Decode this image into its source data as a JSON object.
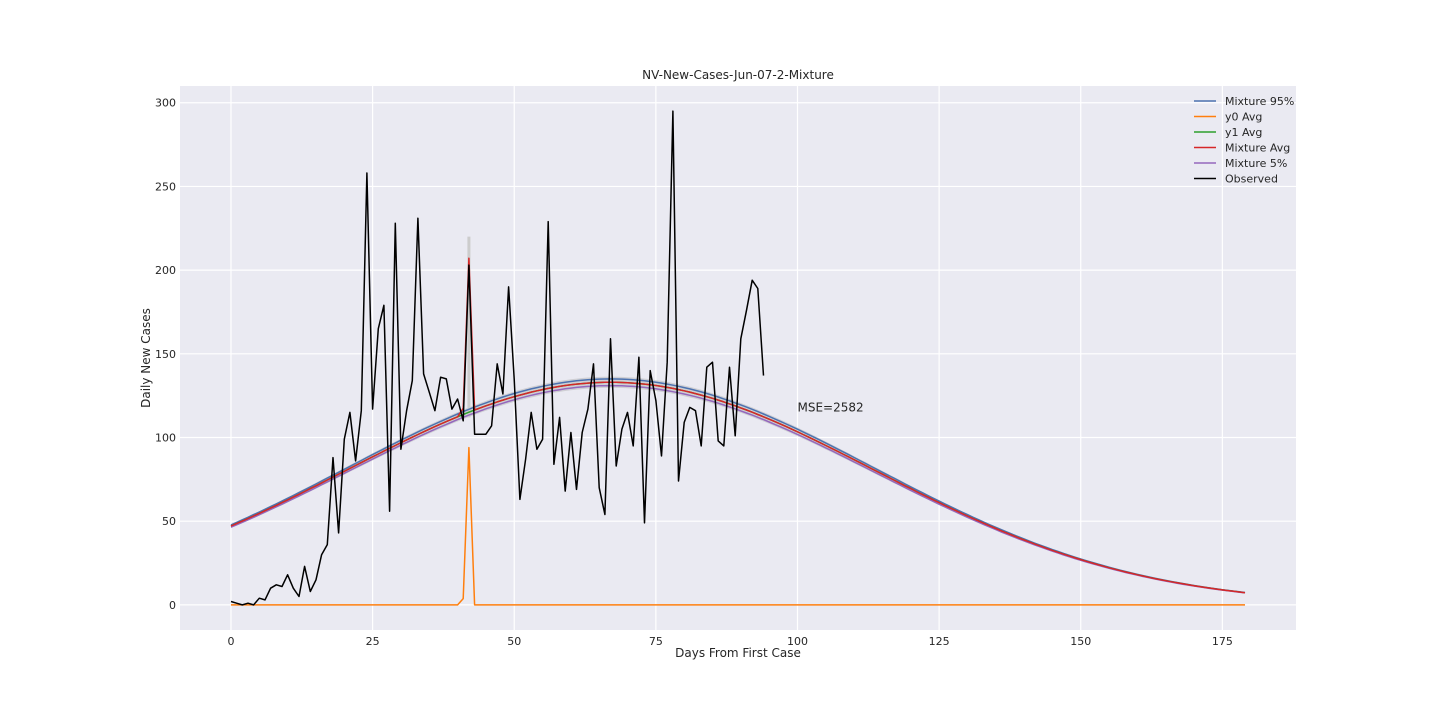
{
  "chart_data": {
    "type": "line",
    "title": "NV-New-Cases-Jun-07-2-Mixture",
    "xlabel": "Days From First Case",
    "ylabel": "Daily New Cases",
    "xlim": [
      -9,
      188
    ],
    "ylim": [
      -15,
      310
    ],
    "xticks": [
      0,
      25,
      50,
      75,
      100,
      125,
      150,
      175
    ],
    "yticks": [
      0,
      50,
      100,
      150,
      200,
      250,
      300
    ],
    "grid": true,
    "legend_position": "top-right",
    "annotation": {
      "text": "MSE=2582",
      "x": 100,
      "y": 118
    },
    "model": {
      "x_start": 0,
      "x_end": 179,
      "peak_x": 67,
      "peak_value": 133,
      "sigma": 46.5,
      "spike_x": 42
    },
    "series": [
      {
        "name": "Mixture 95%",
        "color": "#4c72b0",
        "scale": 1.015,
        "spike": 0
      },
      {
        "name": "y0 Avg",
        "color": "#ff7f0e",
        "scale": 0,
        "spike": 94
      },
      {
        "name": "y1 Avg",
        "color": "#2ca02c",
        "scale": 1.0,
        "spike": 0
      },
      {
        "name": "Mixture Avg",
        "color": "#d62728",
        "scale": 1.0,
        "spike": 92
      },
      {
        "name": "Mixture 5%",
        "color": "#9467bd",
        "scale": 0.985,
        "spike": 0
      },
      {
        "name": "Observed",
        "color": "#000000",
        "x": [
          0,
          1,
          2,
          3,
          4,
          5,
          6,
          7,
          8,
          9,
          10,
          11,
          12,
          13,
          14,
          15,
          16,
          17,
          18,
          19,
          20,
          21,
          22,
          23,
          24,
          25,
          26,
          27,
          28,
          29,
          30,
          31,
          32,
          33,
          34,
          35,
          36,
          37,
          38,
          39,
          40,
          41,
          42,
          43,
          44,
          45,
          46,
          47,
          48,
          49,
          50,
          51,
          52,
          53,
          54,
          55,
          56,
          57,
          58,
          59,
          60,
          61,
          62,
          63,
          64,
          65,
          66,
          67,
          68,
          69,
          70,
          71,
          72,
          73,
          74,
          75,
          76,
          77,
          78,
          79,
          80,
          81,
          82,
          83,
          84,
          85,
          86,
          87,
          88,
          89,
          90,
          91,
          92,
          93,
          94
        ],
        "values": [
          2,
          1,
          0,
          1,
          0,
          4,
          3,
          10,
          12,
          11,
          18,
          10,
          5,
          23,
          8,
          15,
          30,
          36,
          88,
          43,
          99,
          115,
          86,
          116,
          258,
          117,
          165,
          179,
          56,
          228,
          93,
          116,
          134,
          231,
          138,
          127,
          116,
          136,
          135,
          117,
          123,
          110,
          203,
          102,
          102,
          102,
          107,
          144,
          126,
          190,
          135,
          63,
          87,
          115,
          93,
          99,
          229,
          84,
          112,
          68,
          103,
          69,
          103,
          117,
          144,
          70,
          54,
          159,
          83,
          105,
          115,
          95,
          148,
          49,
          140,
          122,
          89,
          145,
          295,
          74,
          109,
          118,
          116,
          95,
          142,
          145,
          98,
          95,
          142,
          101,
          159,
          176,
          194,
          189,
          137
        ]
      }
    ]
  }
}
